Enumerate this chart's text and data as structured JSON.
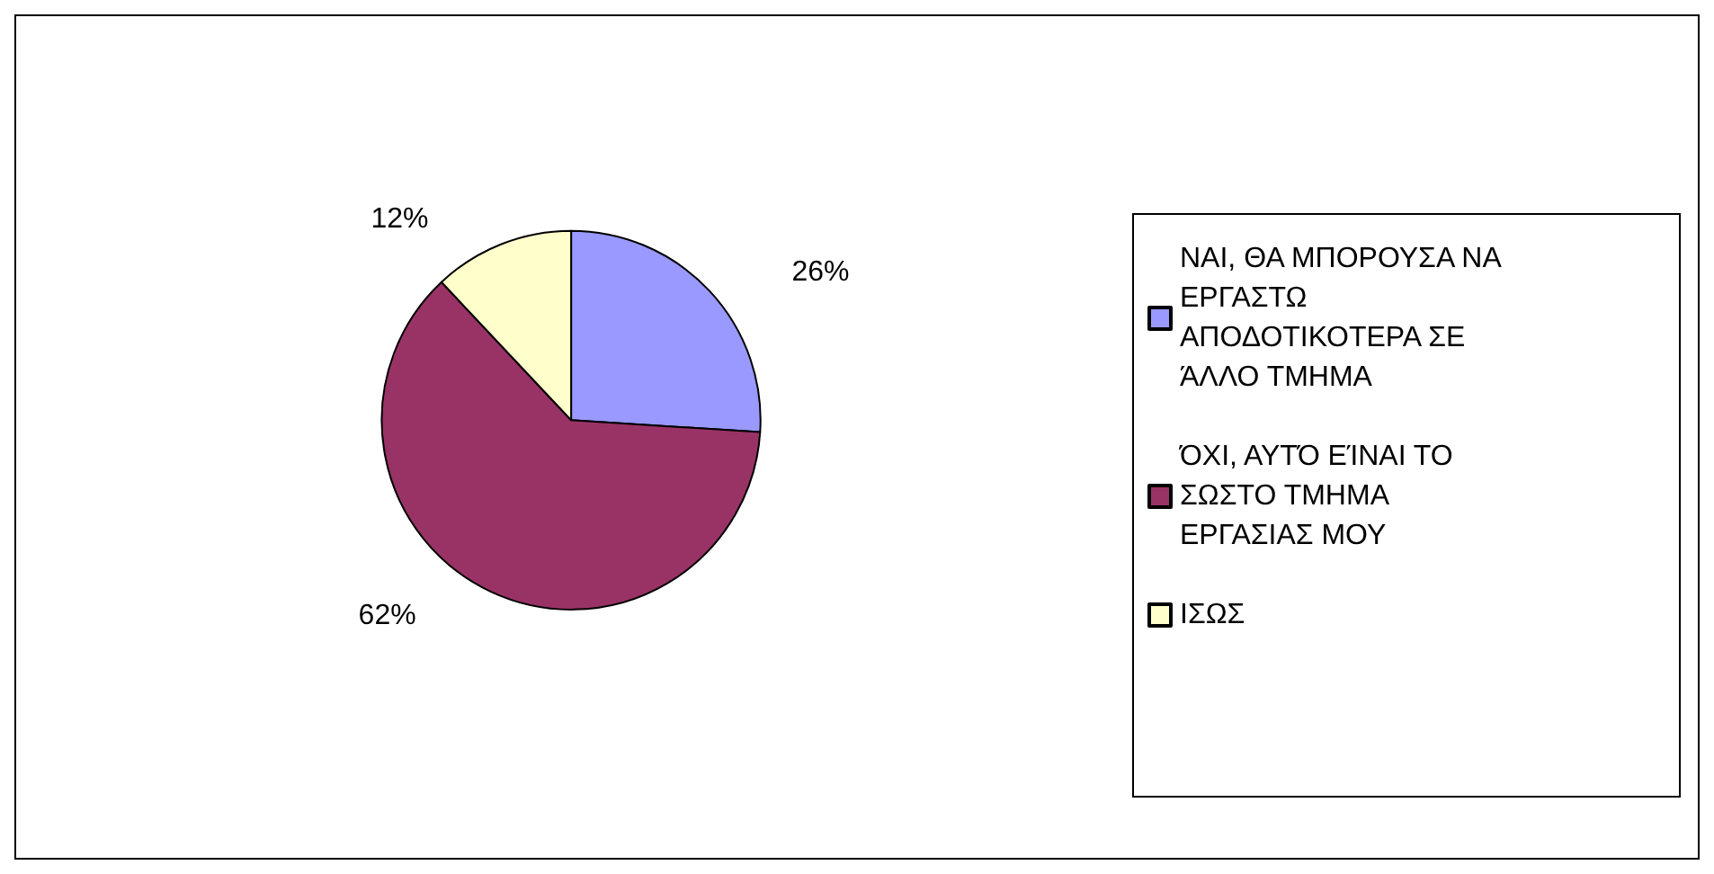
{
  "chart_data": {
    "type": "pie",
    "categories": [
      "ΝΑΙ, ΘΑ ΜΠΟΡΟΥΣΑ ΝΑ ΕΡΓΑΣΤΩ ΑΠΟΔΟΤΙΚΟΤΕΡΑ ΣΕ ΆΛΛΟ ΤΜΗΜΑ",
      "ΌΧΙ, ΑΥΤΌ ΕΊΝΑΙ ΤΟ ΣΩΣΤΟ ΤΜΗΜΑ ΕΡΓΑΣΙΑΣ ΜΟΥ",
      "ΙΣΩΣ"
    ],
    "values": [
      26,
      62,
      12
    ],
    "colors": [
      "#9999ff",
      "#993366",
      "#ffffcc"
    ],
    "value_labels": [
      "26%",
      "62%",
      "12%"
    ],
    "legend": "right"
  }
}
